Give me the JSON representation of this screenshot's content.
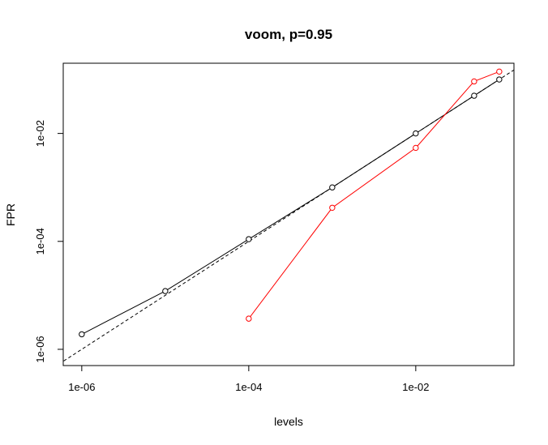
{
  "chart_data": {
    "type": "line",
    "title": "voom, p=0.95",
    "xlabel": "levels",
    "ylabel": "FPR",
    "xscale": "log",
    "yscale": "log",
    "xlim": [
      6e-07,
      0.15
    ],
    "ylim": [
      5e-07,
      0.2
    ],
    "x_ticks": [
      1e-06,
      0.0001,
      0.01
    ],
    "x_tick_labels": [
      "1e-06",
      "1e-04",
      "1e-02"
    ],
    "y_ticks": [
      1e-06,
      0.0001,
      0.01
    ],
    "y_tick_labels": [
      "1e-06",
      "1e-04",
      "1e-02"
    ],
    "reference_line": {
      "style": "dashed",
      "color": "#000000",
      "description": "y = x"
    },
    "series": [
      {
        "color": "#000000",
        "marker": "open-circle",
        "points": [
          {
            "x": 1e-06,
            "y": 1.9e-06
          },
          {
            "x": 1e-05,
            "y": 1.2e-05
          },
          {
            "x": 0.0001,
            "y": 0.00011
          },
          {
            "x": 0.001,
            "y": 0.001
          },
          {
            "x": 0.01,
            "y": 0.01
          },
          {
            "x": 0.05,
            "y": 0.05
          },
          {
            "x": 0.1,
            "y": 0.1
          }
        ]
      },
      {
        "color": "#ff0000",
        "marker": "open-circle",
        "points": [
          {
            "x": 0.0001,
            "y": 3.7e-06
          },
          {
            "x": 0.001,
            "y": 0.00042
          },
          {
            "x": 0.01,
            "y": 0.0054
          },
          {
            "x": 0.05,
            "y": 0.092
          },
          {
            "x": 0.1,
            "y": 0.14
          }
        ]
      }
    ]
  }
}
